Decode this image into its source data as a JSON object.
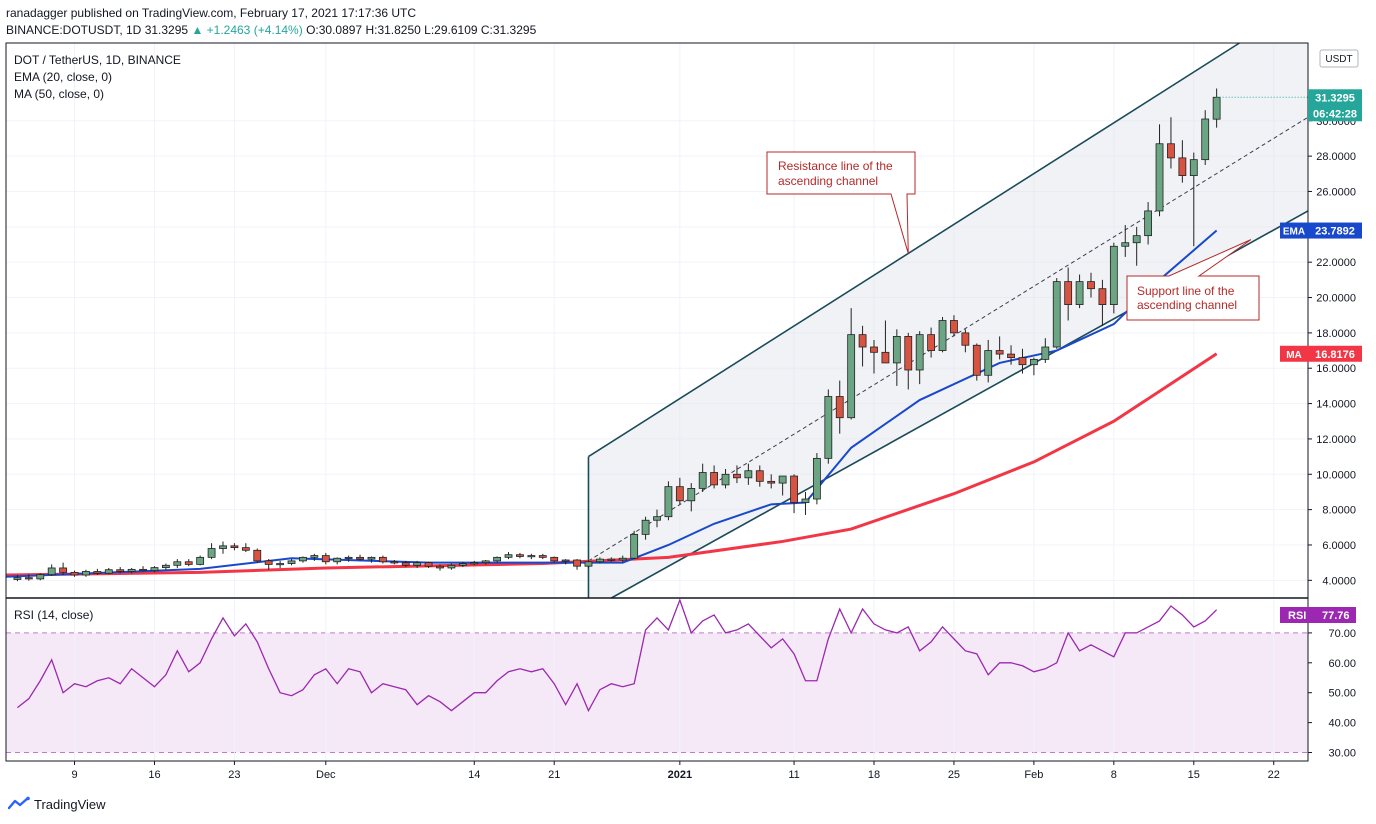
{
  "header": {
    "published": "ranadagger published on TradingView.com, February 17, 2021 17:17:36 UTC",
    "symbol": "BINANCE:DOTUSDT, 1D",
    "last": "31.3295",
    "change": "▲ +1.2463 (+4.14%)",
    "ohlc": "O:30.0897 H:31.8250 L:29.6109 C:31.3295"
  },
  "legend": {
    "pair": "DOT / TetherUS, 1D, BINANCE",
    "ema": "EMA (20, close, 0)",
    "ma": "MA (50, close, 0)",
    "rsi": "RSI (14, close)"
  },
  "brand": "TradingView",
  "annotations": {
    "resistance": [
      "Resistance line of the",
      "ascending channel"
    ],
    "support": [
      "Support line of the",
      "ascending channel"
    ]
  },
  "chart_data": {
    "type": "candlestick",
    "currency": "USDT",
    "ylim": [
      3.0,
      34.4
    ],
    "yticks": [
      4,
      6,
      8,
      10,
      12,
      14,
      16,
      18,
      20,
      22,
      24,
      26,
      28,
      30
    ],
    "ytick_labels": [
      "4.0000",
      "6.0000",
      "8.0000",
      "10.0000",
      "12.0000",
      "14.0000",
      "16.0000",
      "18.0000",
      "20.0000",
      "22.0000",
      "24.0000",
      "26.0000",
      "28.0000",
      "30.0000"
    ],
    "x_day_range": [
      "2020-11-03",
      "2021-02-25"
    ],
    "xticks": [
      {
        "date": "2020-11-09",
        "label": "9"
      },
      {
        "date": "2020-11-16",
        "label": "16"
      },
      {
        "date": "2020-11-23",
        "label": "23"
      },
      {
        "date": "2020-12-01",
        "label": "Dec"
      },
      {
        "date": "2020-12-14",
        "label": "14"
      },
      {
        "date": "2020-12-21",
        "label": "21"
      },
      {
        "date": "2021-01-01",
        "label": "2021"
      },
      {
        "date": "2021-01-11",
        "label": "11"
      },
      {
        "date": "2021-01-18",
        "label": "18"
      },
      {
        "date": "2021-01-25",
        "label": "25"
      },
      {
        "date": "2021-02-01",
        "label": "Feb"
      },
      {
        "date": "2021-02-08",
        "label": "8"
      },
      {
        "date": "2021-02-15",
        "label": "15"
      },
      {
        "date": "2021-02-22",
        "label": "22"
      }
    ],
    "candles": [
      {
        "date": "2020-11-04",
        "o": 4.05,
        "h": 4.3,
        "l": 3.95,
        "c": 4.15
      },
      {
        "date": "2020-11-05",
        "o": 4.15,
        "h": 4.35,
        "l": 3.98,
        "c": 4.08
      },
      {
        "date": "2020-11-06",
        "o": 4.08,
        "h": 4.4,
        "l": 4.0,
        "c": 4.32
      },
      {
        "date": "2020-11-07",
        "o": 4.32,
        "h": 4.9,
        "l": 4.25,
        "c": 4.7
      },
      {
        "date": "2020-11-08",
        "o": 4.7,
        "h": 5.0,
        "l": 4.3,
        "c": 4.45
      },
      {
        "date": "2020-11-09",
        "o": 4.45,
        "h": 4.55,
        "l": 4.2,
        "c": 4.3
      },
      {
        "date": "2020-11-10",
        "o": 4.3,
        "h": 4.6,
        "l": 4.2,
        "c": 4.5
      },
      {
        "date": "2020-11-11",
        "o": 4.5,
        "h": 4.65,
        "l": 4.3,
        "c": 4.4
      },
      {
        "date": "2020-11-12",
        "o": 4.4,
        "h": 4.7,
        "l": 4.35,
        "c": 4.6
      },
      {
        "date": "2020-11-13",
        "o": 4.6,
        "h": 4.75,
        "l": 4.4,
        "c": 4.5
      },
      {
        "date": "2020-11-14",
        "o": 4.5,
        "h": 4.7,
        "l": 4.4,
        "c": 4.62
      },
      {
        "date": "2020-11-15",
        "o": 4.62,
        "h": 4.8,
        "l": 4.5,
        "c": 4.55
      },
      {
        "date": "2020-11-16",
        "o": 4.55,
        "h": 4.8,
        "l": 4.45,
        "c": 4.72
      },
      {
        "date": "2020-11-17",
        "o": 4.72,
        "h": 4.95,
        "l": 4.6,
        "c": 4.85
      },
      {
        "date": "2020-11-18",
        "o": 4.85,
        "h": 5.2,
        "l": 4.7,
        "c": 5.05
      },
      {
        "date": "2020-11-19",
        "o": 5.05,
        "h": 5.2,
        "l": 4.8,
        "c": 4.9
      },
      {
        "date": "2020-11-20",
        "o": 4.9,
        "h": 5.4,
        "l": 4.85,
        "c": 5.3
      },
      {
        "date": "2020-11-21",
        "o": 5.3,
        "h": 6.1,
        "l": 5.2,
        "c": 5.8
      },
      {
        "date": "2020-11-22",
        "o": 5.8,
        "h": 6.2,
        "l": 5.5,
        "c": 5.95
      },
      {
        "date": "2020-11-23",
        "o": 5.95,
        "h": 6.1,
        "l": 5.7,
        "c": 5.85
      },
      {
        "date": "2020-11-24",
        "o": 5.85,
        "h": 6.1,
        "l": 5.6,
        "c": 5.7
      },
      {
        "date": "2020-11-25",
        "o": 5.7,
        "h": 5.8,
        "l": 5.0,
        "c": 5.1
      },
      {
        "date": "2020-11-26",
        "o": 5.1,
        "h": 5.2,
        "l": 4.6,
        "c": 4.9
      },
      {
        "date": "2020-11-27",
        "o": 4.9,
        "h": 5.1,
        "l": 4.7,
        "c": 4.95
      },
      {
        "date": "2020-11-28",
        "o": 4.95,
        "h": 5.2,
        "l": 4.85,
        "c": 5.1
      },
      {
        "date": "2020-11-29",
        "o": 5.1,
        "h": 5.35,
        "l": 5.0,
        "c": 5.3
      },
      {
        "date": "2020-11-30",
        "o": 5.3,
        "h": 5.5,
        "l": 5.1,
        "c": 5.4
      },
      {
        "date": "2020-12-01",
        "o": 5.4,
        "h": 5.55,
        "l": 4.9,
        "c": 5.05
      },
      {
        "date": "2020-12-02",
        "o": 5.05,
        "h": 5.3,
        "l": 4.9,
        "c": 5.25
      },
      {
        "date": "2020-12-03",
        "o": 5.25,
        "h": 5.4,
        "l": 5.05,
        "c": 5.3
      },
      {
        "date": "2020-12-04",
        "o": 5.3,
        "h": 5.45,
        "l": 5.1,
        "c": 5.2
      },
      {
        "date": "2020-12-05",
        "o": 5.2,
        "h": 5.35,
        "l": 5.0,
        "c": 5.3
      },
      {
        "date": "2020-12-06",
        "o": 5.3,
        "h": 5.4,
        "l": 4.95,
        "c": 5.05
      },
      {
        "date": "2020-12-07",
        "o": 5.05,
        "h": 5.15,
        "l": 4.9,
        "c": 5.0
      },
      {
        "date": "2020-12-08",
        "o": 5.0,
        "h": 5.1,
        "l": 4.75,
        "c": 4.85
      },
      {
        "date": "2020-12-09",
        "o": 4.85,
        "h": 5.1,
        "l": 4.7,
        "c": 5.0
      },
      {
        "date": "2020-12-10",
        "o": 5.0,
        "h": 5.05,
        "l": 4.7,
        "c": 4.8
      },
      {
        "date": "2020-12-11",
        "o": 4.8,
        "h": 4.9,
        "l": 4.55,
        "c": 4.7
      },
      {
        "date": "2020-12-12",
        "o": 4.7,
        "h": 4.95,
        "l": 4.6,
        "c": 4.85
      },
      {
        "date": "2020-12-13",
        "o": 4.85,
        "h": 5.05,
        "l": 4.75,
        "c": 4.95
      },
      {
        "date": "2020-12-14",
        "o": 4.95,
        "h": 5.1,
        "l": 4.85,
        "c": 5.0
      },
      {
        "date": "2020-12-15",
        "o": 5.0,
        "h": 5.15,
        "l": 4.9,
        "c": 5.1
      },
      {
        "date": "2020-12-16",
        "o": 5.1,
        "h": 5.35,
        "l": 5.0,
        "c": 5.3
      },
      {
        "date": "2020-12-17",
        "o": 5.3,
        "h": 5.6,
        "l": 5.2,
        "c": 5.45
      },
      {
        "date": "2020-12-18",
        "o": 5.45,
        "h": 5.55,
        "l": 5.25,
        "c": 5.35
      },
      {
        "date": "2020-12-19",
        "o": 5.35,
        "h": 5.5,
        "l": 5.2,
        "c": 5.4
      },
      {
        "date": "2020-12-20",
        "o": 5.4,
        "h": 5.5,
        "l": 5.2,
        "c": 5.3
      },
      {
        "date": "2020-12-21",
        "o": 5.3,
        "h": 5.35,
        "l": 5.0,
        "c": 5.1
      },
      {
        "date": "2020-12-22",
        "o": 5.1,
        "h": 5.2,
        "l": 4.9,
        "c": 5.15
      },
      {
        "date": "2020-12-23",
        "o": 5.15,
        "h": 5.2,
        "l": 4.6,
        "c": 4.8
      },
      {
        "date": "2020-12-24",
        "o": 4.8,
        "h": 5.15,
        "l": 4.7,
        "c": 5.05
      },
      {
        "date": "2020-12-25",
        "o": 5.05,
        "h": 5.3,
        "l": 4.95,
        "c": 5.2
      },
      {
        "date": "2020-12-26",
        "o": 5.2,
        "h": 5.3,
        "l": 5.05,
        "c": 5.15
      },
      {
        "date": "2020-12-27",
        "o": 5.15,
        "h": 5.4,
        "l": 5.0,
        "c": 5.25
      },
      {
        "date": "2020-12-28",
        "o": 5.25,
        "h": 6.8,
        "l": 5.2,
        "c": 6.6
      },
      {
        "date": "2020-12-29",
        "o": 6.6,
        "h": 7.6,
        "l": 6.3,
        "c": 7.4
      },
      {
        "date": "2020-12-30",
        "o": 7.4,
        "h": 8.0,
        "l": 7.0,
        "c": 7.6
      },
      {
        "date": "2020-12-31",
        "o": 7.6,
        "h": 9.6,
        "l": 7.4,
        "c": 9.3
      },
      {
        "date": "2021-01-01",
        "o": 9.3,
        "h": 9.8,
        "l": 8.3,
        "c": 8.5
      },
      {
        "date": "2021-01-02",
        "o": 8.5,
        "h": 9.5,
        "l": 7.9,
        "c": 9.2
      },
      {
        "date": "2021-01-03",
        "o": 9.2,
        "h": 10.6,
        "l": 9.0,
        "c": 10.1
      },
      {
        "date": "2021-01-04",
        "o": 10.1,
        "h": 10.5,
        "l": 9.2,
        "c": 9.4
      },
      {
        "date": "2021-01-05",
        "o": 9.4,
        "h": 10.3,
        "l": 9.2,
        "c": 10.0
      },
      {
        "date": "2021-01-06",
        "o": 10.0,
        "h": 10.5,
        "l": 9.5,
        "c": 9.8
      },
      {
        "date": "2021-01-07",
        "o": 9.8,
        "h": 10.6,
        "l": 9.4,
        "c": 10.2
      },
      {
        "date": "2021-01-08",
        "o": 10.2,
        "h": 10.5,
        "l": 9.3,
        "c": 9.6
      },
      {
        "date": "2021-01-09",
        "o": 9.6,
        "h": 10.0,
        "l": 9.2,
        "c": 9.5
      },
      {
        "date": "2021-01-10",
        "o": 9.5,
        "h": 9.9,
        "l": 8.8,
        "c": 9.9
      },
      {
        "date": "2021-01-11",
        "o": 9.9,
        "h": 10.0,
        "l": 7.8,
        "c": 8.4
      },
      {
        "date": "2021-01-12",
        "o": 8.4,
        "h": 9.0,
        "l": 7.7,
        "c": 8.6
      },
      {
        "date": "2021-01-13",
        "o": 8.6,
        "h": 11.2,
        "l": 8.3,
        "c": 10.9
      },
      {
        "date": "2021-01-14",
        "o": 10.9,
        "h": 14.8,
        "l": 10.6,
        "c": 14.4
      },
      {
        "date": "2021-01-15",
        "o": 14.4,
        "h": 15.3,
        "l": 12.3,
        "c": 13.2
      },
      {
        "date": "2021-01-16",
        "o": 13.2,
        "h": 19.4,
        "l": 13.1,
        "c": 17.9
      },
      {
        "date": "2021-01-17",
        "o": 17.9,
        "h": 18.4,
        "l": 16.1,
        "c": 17.2
      },
      {
        "date": "2021-01-18",
        "o": 17.2,
        "h": 17.6,
        "l": 15.7,
        "c": 16.9
      },
      {
        "date": "2021-01-19",
        "o": 16.9,
        "h": 18.7,
        "l": 16.3,
        "c": 16.3
      },
      {
        "date": "2021-01-20",
        "o": 16.3,
        "h": 18.2,
        "l": 15.0,
        "c": 17.8
      },
      {
        "date": "2021-01-21",
        "o": 17.8,
        "h": 18.0,
        "l": 14.8,
        "c": 15.9
      },
      {
        "date": "2021-01-22",
        "o": 15.9,
        "h": 18.1,
        "l": 15.1,
        "c": 17.9
      },
      {
        "date": "2021-01-23",
        "o": 17.9,
        "h": 18.3,
        "l": 16.6,
        "c": 17.0
      },
      {
        "date": "2021-01-24",
        "o": 17.0,
        "h": 18.9,
        "l": 16.9,
        "c": 18.7
      },
      {
        "date": "2021-01-25",
        "o": 18.7,
        "h": 19.0,
        "l": 17.8,
        "c": 18.0
      },
      {
        "date": "2021-01-26",
        "o": 18.0,
        "h": 18.2,
        "l": 16.9,
        "c": 17.3
      },
      {
        "date": "2021-01-27",
        "o": 17.3,
        "h": 17.4,
        "l": 15.3,
        "c": 15.6
      },
      {
        "date": "2021-01-28",
        "o": 15.6,
        "h": 17.6,
        "l": 15.2,
        "c": 17.0
      },
      {
        "date": "2021-01-29",
        "o": 17.0,
        "h": 17.8,
        "l": 16.5,
        "c": 16.8
      },
      {
        "date": "2021-01-30",
        "o": 16.8,
        "h": 17.3,
        "l": 16.2,
        "c": 16.6
      },
      {
        "date": "2021-01-31",
        "o": 16.6,
        "h": 17.1,
        "l": 15.7,
        "c": 16.2
      },
      {
        "date": "2021-02-01",
        "o": 16.2,
        "h": 16.6,
        "l": 15.6,
        "c": 16.5
      },
      {
        "date": "2021-02-02",
        "o": 16.5,
        "h": 17.7,
        "l": 16.3,
        "c": 17.2
      },
      {
        "date": "2021-02-03",
        "o": 17.2,
        "h": 21.1,
        "l": 17.1,
        "c": 20.9
      },
      {
        "date": "2021-02-04",
        "o": 20.9,
        "h": 21.7,
        "l": 18.7,
        "c": 19.6
      },
      {
        "date": "2021-02-05",
        "o": 19.6,
        "h": 21.3,
        "l": 19.4,
        "c": 20.9
      },
      {
        "date": "2021-02-06",
        "o": 20.9,
        "h": 21.4,
        "l": 20.0,
        "c": 20.5
      },
      {
        "date": "2021-02-07",
        "o": 20.5,
        "h": 21.0,
        "l": 18.4,
        "c": 19.6
      },
      {
        "date": "2021-02-08",
        "o": 19.6,
        "h": 23.1,
        "l": 19.1,
        "c": 22.9
      },
      {
        "date": "2021-02-09",
        "o": 22.9,
        "h": 24.1,
        "l": 22.3,
        "c": 23.1
      },
      {
        "date": "2021-02-10",
        "o": 23.1,
        "h": 24.0,
        "l": 21.8,
        "c": 23.5
      },
      {
        "date": "2021-02-11",
        "o": 23.5,
        "h": 25.4,
        "l": 23.0,
        "c": 24.9
      },
      {
        "date": "2021-02-12",
        "o": 24.9,
        "h": 29.8,
        "l": 24.6,
        "c": 28.7
      },
      {
        "date": "2021-02-13",
        "o": 28.7,
        "h": 30.2,
        "l": 27.3,
        "c": 27.9
      },
      {
        "date": "2021-02-14",
        "o": 27.9,
        "h": 28.9,
        "l": 26.5,
        "c": 26.9
      },
      {
        "date": "2021-02-15",
        "o": 26.9,
        "h": 28.2,
        "l": 22.9,
        "c": 27.8
      },
      {
        "date": "2021-02-16",
        "o": 27.8,
        "h": 30.6,
        "l": 27.5,
        "c": 30.1
      },
      {
        "date": "2021-02-17",
        "o": 30.0897,
        "h": 31.825,
        "l": 29.6109,
        "c": 31.3295
      }
    ],
    "ema20": [
      [
        "2020-11-03",
        4.2
      ],
      [
        "2020-11-20",
        4.65
      ],
      [
        "2020-11-28",
        5.25
      ],
      [
        "2020-12-10",
        5.0
      ],
      [
        "2020-12-27",
        5.0
      ],
      [
        "2020-12-31",
        6.0
      ],
      [
        "2021-01-04",
        7.2
      ],
      [
        "2021-01-09",
        8.3
      ],
      [
        "2021-01-12",
        8.4
      ],
      [
        "2021-01-16",
        11.5
      ],
      [
        "2021-01-22",
        14.2
      ],
      [
        "2021-01-29",
        16.3
      ],
      [
        "2021-02-03",
        17.0
      ],
      [
        "2021-02-08",
        18.5
      ],
      [
        "2021-02-12",
        21.0
      ],
      [
        "2021-02-17",
        23.7892
      ]
    ],
    "ma50": [
      [
        "2020-11-03",
        4.3
      ],
      [
        "2020-11-20",
        4.45
      ],
      [
        "2020-12-01",
        4.7
      ],
      [
        "2020-12-20",
        4.95
      ],
      [
        "2020-12-31",
        5.3
      ],
      [
        "2021-01-10",
        6.2
      ],
      [
        "2021-01-16",
        6.9
      ],
      [
        "2021-01-25",
        8.9
      ],
      [
        "2021-02-01",
        10.7
      ],
      [
        "2021-02-08",
        13.0
      ],
      [
        "2021-02-17",
        16.8176
      ]
    ],
    "channel": {
      "resistance": [
        [
          "2020-12-24",
          11.0
        ],
        [
          "2021-02-19",
          34.4
        ]
      ],
      "middle": [
        [
          "2020-12-24",
          5.1
        ],
        [
          "2021-02-25",
          30.2
        ]
      ],
      "support": [
        [
          "2020-12-26",
          3.0
        ],
        [
          "2021-02-25",
          24.9
        ]
      ]
    },
    "price_labels": [
      {
        "name": "last",
        "value": 31.3295,
        "text": "31.3295",
        "timer": "06:42:28",
        "color": "#26a69a"
      },
      {
        "name": "ema",
        "value": 23.7892,
        "text": "23.7892",
        "tag": "EMA",
        "color": "#1848cc"
      },
      {
        "name": "ma",
        "value": 16.8176,
        "text": "16.8176",
        "tag": "MA",
        "color": "#f23645"
      }
    ],
    "rsi": {
      "ylim": [
        27.5,
        81.0
      ],
      "yticks": [
        30,
        40,
        50,
        60,
        70
      ],
      "ytick_labels": [
        "30.00",
        "40.00",
        "50.00",
        "60.00",
        "70.00"
      ],
      "band": [
        30,
        70
      ],
      "last": "77.76",
      "values": [
        45,
        48,
        54,
        61,
        50,
        53,
        52,
        54,
        55,
        53,
        58,
        55,
        52,
        56,
        64,
        57,
        60,
        68,
        75,
        69,
        73,
        67,
        58,
        50,
        49,
        51,
        56,
        58,
        53,
        58,
        57,
        50,
        53,
        52,
        51,
        46,
        49,
        47,
        44,
        47,
        50,
        50,
        54,
        57,
        58,
        57,
        58,
        53,
        46,
        53,
        44,
        51,
        53,
        52,
        53,
        71,
        75,
        71,
        81,
        70,
        74,
        76,
        70,
        71,
        73,
        69,
        65,
        68,
        63,
        54,
        54,
        68,
        78,
        70,
        78,
        73,
        71,
        70,
        72,
        64,
        67,
        72,
        68,
        64,
        63,
        56,
        60,
        60,
        59,
        57,
        58,
        60,
        70,
        64,
        66,
        64,
        62,
        70,
        70,
        72,
        74,
        79,
        76,
        72,
        74,
        77.76
      ]
    }
  }
}
